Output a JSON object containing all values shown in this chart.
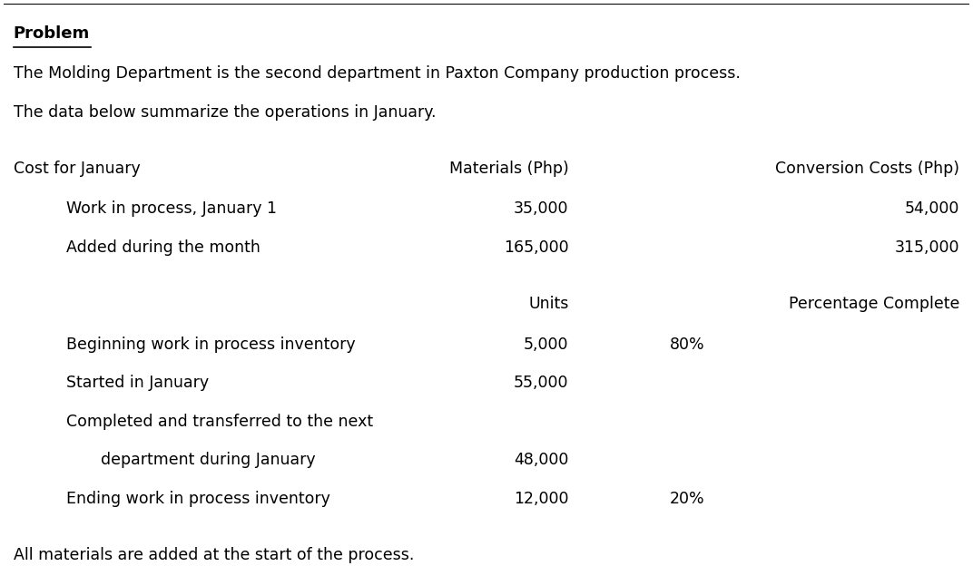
{
  "bg_color": "#ffffff",
  "text_color": "#000000",
  "title": "Problem",
  "line1": "The Molding Department is the second department in Paxton Company production process.",
  "line2": "The data below summarize the operations in January.",
  "cost_header": "Cost for January",
  "col1_header": "Materials (Php)",
  "col2_header": "Conversion Costs (Php)",
  "row1_label": "Work in process, January 1",
  "row1_col1": "35,000",
  "row1_col2": "54,000",
  "row2_label": "Added during the month",
  "row2_col1": "165,000",
  "row2_col2": "315,000",
  "units_header": "Units",
  "pct_header": "Percentage Complete",
  "sub_row1_label": "Beginning work in process inventory",
  "sub_row1_units": "5,000",
  "sub_row1_pct": "80%",
  "sub_row2_label": "Started in January",
  "sub_row2_units": "55,000",
  "sub_row2_pct": "",
  "sub_row3a_label": "Completed and transferred to the next",
  "sub_row3b_label": "department during January",
  "sub_row3_units": "48,000",
  "sub_row3_pct": "",
  "sub_row4_label": "Ending work in process inventory",
  "sub_row4_units": "12,000",
  "sub_row4_pct": "20%",
  "footer": "All materials are added at the start of the process.",
  "font_size_title": 13,
  "font_size_body": 12.5,
  "font_size_header": 12.5
}
